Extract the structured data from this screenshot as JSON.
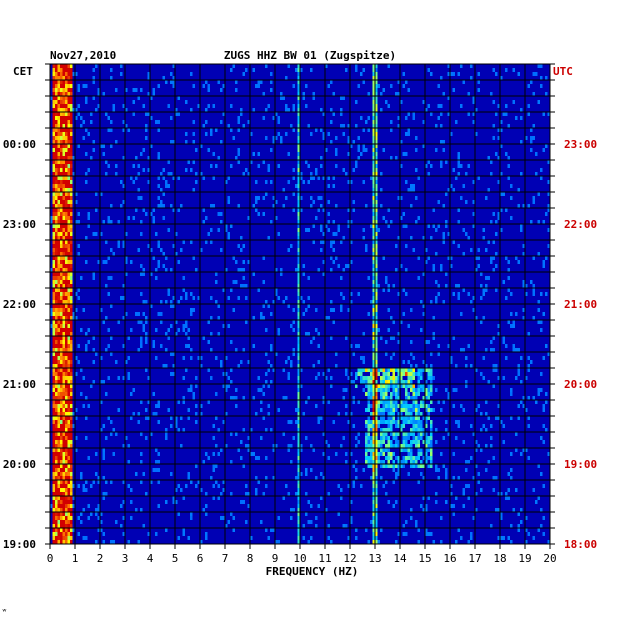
{
  "chart_data": {
    "type": "heatmap",
    "title": "ZUGS HHZ BW 01 (Zugspitze)",
    "date": "Nov27,2010",
    "xlabel": "FREQUENCY (HZ)",
    "left_axis_label": "CET",
    "right_axis_label": "UTC",
    "xlim": [
      0,
      20
    ],
    "x_ticks": [
      "0",
      "1",
      "2",
      "3",
      "4",
      "5",
      "6",
      "7",
      "8",
      "9",
      "10",
      "11",
      "12",
      "13",
      "14",
      "15",
      "16",
      "17",
      "18",
      "19",
      "20"
    ],
    "left_ticks": [
      "00:00",
      "23:00",
      "22:00",
      "21:00",
      "20:00",
      "19:00"
    ],
    "right_ticks": [
      "23:00",
      "22:00",
      "21:00",
      "20:00",
      "19:00",
      "18:00"
    ],
    "colors": {
      "background": "#0000b4",
      "grid": "#000000",
      "utc_labels": "#cc0000"
    },
    "features": [
      {
        "type": "band",
        "x_from": 0.1,
        "x_to": 0.8,
        "intensity": 0.85
      },
      {
        "type": "line",
        "x": 12.9,
        "intensity": 0.45
      },
      {
        "type": "line",
        "x": 13.0,
        "intensity": 0.4
      },
      {
        "type": "line",
        "x": 9.9,
        "intensity": 0.3
      },
      {
        "type": "patch",
        "x_from": 12.6,
        "x_to": 15.2,
        "hour_from": 20.0,
        "hour_to": 21.2,
        "intensity": 0.35
      },
      {
        "type": "patch",
        "x_from": 12.2,
        "x_to": 14.5,
        "hour_from": 21.0,
        "hour_to": 21.2,
        "intensity": 0.35
      }
    ]
  },
  "footer_mark": "ʷ"
}
